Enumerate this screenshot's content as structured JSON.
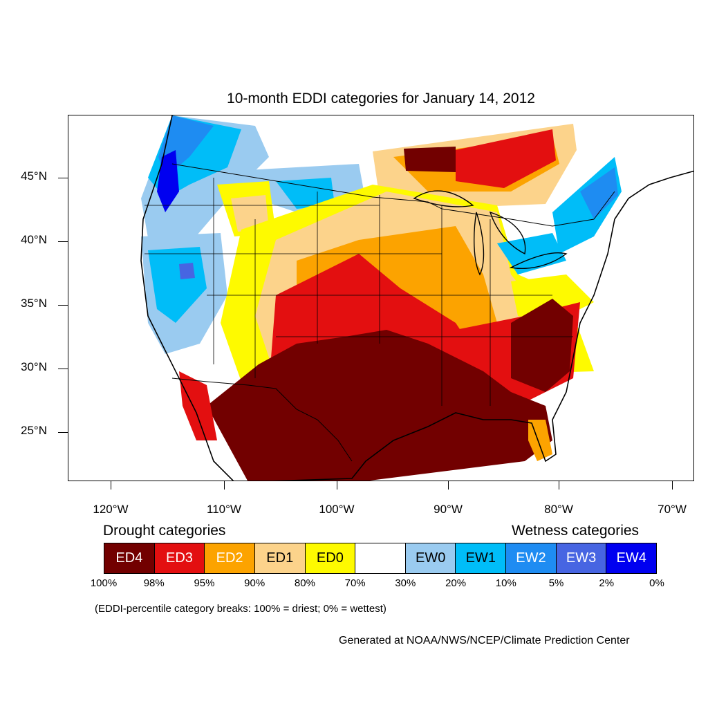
{
  "title": "10-month EDDI categories for January 14, 2012",
  "y_axis": {
    "labels": [
      "45°N",
      "40°N",
      "35°N",
      "30°N",
      "25°N"
    ]
  },
  "x_axis": {
    "labels": [
      "120°W",
      "110°W",
      "100°W",
      "90°W",
      "80°W",
      "70°W"
    ]
  },
  "legend": {
    "drought_title": "Drought categories",
    "wetness_title": "Wetness categories",
    "categories": [
      {
        "label": "ED4",
        "color": "#720000",
        "text_color": "#ffffff"
      },
      {
        "label": "ED3",
        "color": "#e30f10",
        "text_color": "#ffffff"
      },
      {
        "label": "ED2",
        "color": "#fca300",
        "text_color": "#ffffff"
      },
      {
        "label": "ED1",
        "color": "#fcd38b",
        "text_color": "#000000"
      },
      {
        "label": "ED0",
        "color": "#fefa00",
        "text_color": "#000000"
      },
      {
        "label": "",
        "color": "#ffffff",
        "text_color": "#000000"
      },
      {
        "label": "EW0",
        "color": "#9acbf0",
        "text_color": "#000000"
      },
      {
        "label": "EW1",
        "color": "#00bdf8",
        "text_color": "#000000"
      },
      {
        "label": "EW2",
        "color": "#1e8cf2",
        "text_color": "#ffffff"
      },
      {
        "label": "EW3",
        "color": "#4765e2",
        "text_color": "#ffffff"
      },
      {
        "label": "EW4",
        "color": "#0000f0",
        "text_color": "#ffffff"
      }
    ],
    "breaks": [
      "100%",
      "98%",
      "95%",
      "90%",
      "80%",
      "70%",
      "30%",
      "20%",
      "10%",
      "5%",
      "2%",
      "0%"
    ]
  },
  "footnote": "(EDDI-percentile category breaks: 100% = driest; 0% = wettest)",
  "credit": "Generated at NOAA/NWS/NCEP/Climate Prediction Center"
}
